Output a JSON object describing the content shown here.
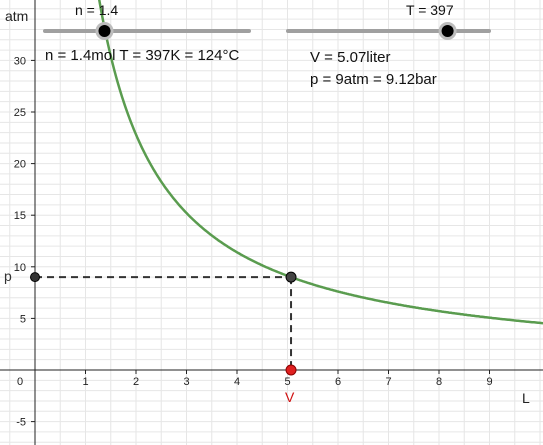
{
  "axes": {
    "x_name": "L",
    "y_name": "atm",
    "x_ticks": [
      "0",
      "1",
      "2",
      "3",
      "4",
      "5",
      "6",
      "7",
      "8",
      "9"
    ],
    "y_ticks": [
      "30",
      "25",
      "20",
      "15",
      "10",
      "5",
      "-5"
    ]
  },
  "sliders": {
    "n": {
      "caption": "n = 1.4",
      "value": 1.4,
      "min": 0,
      "max": 4.8
    },
    "T": {
      "caption": "T = 397",
      "value": 397,
      "min": 0,
      "max": 500
    }
  },
  "info": {
    "line1": "n = 1.4mol  T = 397K = 124°C",
    "line2": "V = 5.07liter",
    "line3": "p = 9atm = 9.12bar"
  },
  "points": {
    "p_label": "p",
    "v_label": "V",
    "V": 5.07,
    "p": 9
  },
  "colors": {
    "curve": "#5a9c4f",
    "point_V": "#e02020",
    "point_p": "#333333",
    "slider_track": "#a0a0a0",
    "grid": "#e6e6e6",
    "axis": "#222222",
    "label_V": "#d01010"
  },
  "chart_data": {
    "type": "line",
    "function": "p = nRT / V",
    "xlabel": "L",
    "ylabel": "atm",
    "xlim": [
      -0.7,
      10.1
    ],
    "ylim": [
      -7.2,
      34.2
    ],
    "grid": true,
    "series": [
      {
        "x": [
          1.3,
          1.4,
          1.5,
          1.75,
          2,
          2.5,
          3,
          3.5,
          4,
          4.5,
          5,
          5.07,
          6,
          7,
          8,
          9,
          10
        ],
        "values": [
          35.1,
          32.6,
          30.4,
          26.1,
          22.8,
          18.2,
          15.2,
          13.0,
          11.4,
          10.1,
          9.1,
          9.0,
          7.6,
          6.5,
          5.7,
          5.1,
          4.6
        ]
      }
    ]
  }
}
